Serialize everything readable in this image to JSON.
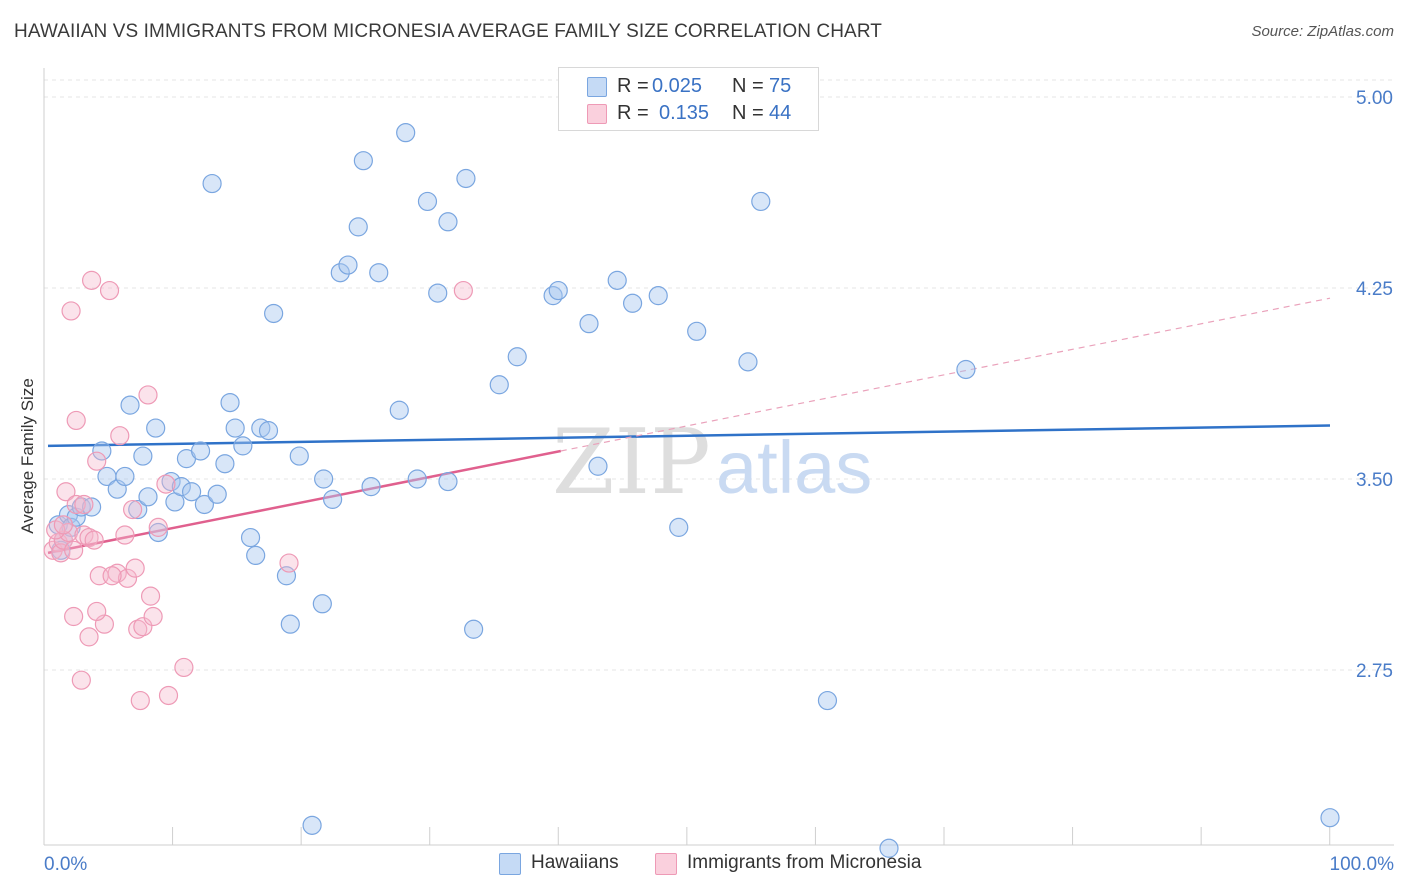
{
  "header": {
    "title": "HAWAIIAN VS IMMIGRANTS FROM MICRONESIA AVERAGE FAMILY SIZE CORRELATION CHART",
    "source": "Source: ZipAtlas.com"
  },
  "legend": {
    "rows": [
      {
        "r_label": "R =",
        "r_value": "0.025",
        "n_label": "N =",
        "n_value": "75",
        "color": "#a9c7ef"
      },
      {
        "r_label": "R =",
        "r_value": "0.135",
        "n_label": "N =",
        "n_value": "44",
        "color": "#f5b8cc"
      }
    ]
  },
  "bottom_legend": [
    {
      "label": "Hawaiians",
      "color": "#a9c7ef"
    },
    {
      "label": "Immigrants from Micronesia",
      "color": "#f5b8cc"
    }
  ],
  "watermark": {
    "zip": "ZIP",
    "atlas": "atlas"
  },
  "chart_data": {
    "type": "scatter",
    "title": "HAWAIIAN VS IMMIGRANTS FROM MICRONESIA AVERAGE FAMILY SIZE CORRELATION CHART",
    "xlabel": "",
    "ylabel": "Average Family Size",
    "xlim": [
      0,
      100
    ],
    "ylim": [
      2.05,
      5.12
    ],
    "x_tick_labels": {
      "left": "0.0%",
      "right": "100.0%"
    },
    "y_ticks": [
      2.75,
      3.5,
      4.25,
      5.0
    ],
    "y_tick_labels": [
      "2.75",
      "3.50",
      "4.25",
      "5.00"
    ],
    "grid": "horizontal dashed",
    "series": [
      {
        "name": "Hawaiians",
        "color": "#7aa6e0",
        "line_color": "#2f72c8",
        "trend": {
          "x": [
            0,
            100
          ],
          "y": [
            3.63,
            3.71
          ],
          "dashed_extension": false
        },
        "points": [
          {
            "x": 0.8,
            "y": 3.32
          },
          {
            "x": 1.2,
            "y": 3.26
          },
          {
            "x": 1.6,
            "y": 3.36
          },
          {
            "x": 1.8,
            "y": 3.31
          },
          {
            "x": 2.2,
            "y": 3.35
          },
          {
            "x": 2.6,
            "y": 3.39
          },
          {
            "x": 3.4,
            "y": 3.39
          },
          {
            "x": 4.2,
            "y": 3.61
          },
          {
            "x": 4.6,
            "y": 3.51
          },
          {
            "x": 5.4,
            "y": 3.46
          },
          {
            "x": 6.0,
            "y": 3.51
          },
          {
            "x": 6.4,
            "y": 3.79
          },
          {
            "x": 7.0,
            "y": 3.38
          },
          {
            "x": 7.4,
            "y": 3.59
          },
          {
            "x": 7.8,
            "y": 3.43
          },
          {
            "x": 8.4,
            "y": 3.7
          },
          {
            "x": 8.6,
            "y": 3.29
          },
          {
            "x": 9.6,
            "y": 3.49
          },
          {
            "x": 9.9,
            "y": 3.41
          },
          {
            "x": 10.4,
            "y": 3.47
          },
          {
            "x": 10.8,
            "y": 3.58
          },
          {
            "x": 11.2,
            "y": 3.45
          },
          {
            "x": 11.9,
            "y": 3.61
          },
          {
            "x": 12.2,
            "y": 3.4
          },
          {
            "x": 12.8,
            "y": 4.66
          },
          {
            "x": 13.2,
            "y": 3.44
          },
          {
            "x": 13.8,
            "y": 3.56
          },
          {
            "x": 14.2,
            "y": 3.8
          },
          {
            "x": 14.6,
            "y": 3.7
          },
          {
            "x": 15.2,
            "y": 3.63
          },
          {
            "x": 15.8,
            "y": 3.27
          },
          {
            "x": 16.2,
            "y": 3.2
          },
          {
            "x": 16.6,
            "y": 3.7
          },
          {
            "x": 17.2,
            "y": 3.69
          },
          {
            "x": 17.6,
            "y": 4.15
          },
          {
            "x": 18.6,
            "y": 3.12
          },
          {
            "x": 18.9,
            "y": 2.93
          },
          {
            "x": 19.6,
            "y": 3.59
          },
          {
            "x": 20.6,
            "y": 2.14
          },
          {
            "x": 21.5,
            "y": 3.5
          },
          {
            "x": 21.4,
            "y": 3.01
          },
          {
            "x": 22.2,
            "y": 3.42
          },
          {
            "x": 22.8,
            "y": 4.31
          },
          {
            "x": 23.4,
            "y": 4.34
          },
          {
            "x": 24.2,
            "y": 4.49
          },
          {
            "x": 24.6,
            "y": 4.75
          },
          {
            "x": 25.2,
            "y": 3.47
          },
          {
            "x": 25.8,
            "y": 4.31
          },
          {
            "x": 27.4,
            "y": 3.77
          },
          {
            "x": 27.9,
            "y": 4.86
          },
          {
            "x": 28.8,
            "y": 3.5
          },
          {
            "x": 29.6,
            "y": 4.59
          },
          {
            "x": 30.4,
            "y": 4.23
          },
          {
            "x": 31.2,
            "y": 4.51
          },
          {
            "x": 31.2,
            "y": 3.49
          },
          {
            "x": 32.6,
            "y": 4.68
          },
          {
            "x": 33.2,
            "y": 2.91
          },
          {
            "x": 35.2,
            "y": 3.87
          },
          {
            "x": 36.6,
            "y": 3.98
          },
          {
            "x": 39.4,
            "y": 4.22
          },
          {
            "x": 39.8,
            "y": 4.24
          },
          {
            "x": 42.2,
            "y": 4.11
          },
          {
            "x": 42.9,
            "y": 3.55
          },
          {
            "x": 44.4,
            "y": 4.28
          },
          {
            "x": 45.6,
            "y": 4.19
          },
          {
            "x": 47.6,
            "y": 4.22
          },
          {
            "x": 49.2,
            "y": 3.31
          },
          {
            "x": 50.6,
            "y": 4.08
          },
          {
            "x": 54.6,
            "y": 3.96
          },
          {
            "x": 55.6,
            "y": 4.59
          },
          {
            "x": 60.8,
            "y": 2.63
          },
          {
            "x": 65.6,
            "y": 2.05
          },
          {
            "x": 71.6,
            "y": 3.93
          },
          {
            "x": 100.0,
            "y": 2.17
          },
          {
            "x": 1.0,
            "y": 3.22
          }
        ]
      },
      {
        "name": "Immigrants from Micronesia",
        "color": "#ee9ab6",
        "line_color": "#e0608e",
        "trend": {
          "x": [
            0,
            40
          ],
          "y": [
            3.21,
            3.61
          ],
          "extension": {
            "x": [
              40,
              100
            ],
            "y": [
              3.61,
              4.21
            ]
          }
        },
        "points": [
          {
            "x": 0.4,
            "y": 3.22
          },
          {
            "x": 0.8,
            "y": 3.25
          },
          {
            "x": 1.0,
            "y": 3.21
          },
          {
            "x": 1.2,
            "y": 3.26
          },
          {
            "x": 1.4,
            "y": 3.45
          },
          {
            "x": 1.6,
            "y": 3.29
          },
          {
            "x": 2.0,
            "y": 3.22
          },
          {
            "x": 2.2,
            "y": 3.4
          },
          {
            "x": 1.8,
            "y": 4.16
          },
          {
            "x": 2.0,
            "y": 2.96
          },
          {
            "x": 2.2,
            "y": 3.73
          },
          {
            "x": 2.8,
            "y": 3.4
          },
          {
            "x": 2.8,
            "y": 3.28
          },
          {
            "x": 2.6,
            "y": 2.71
          },
          {
            "x": 3.2,
            "y": 3.27
          },
          {
            "x": 3.6,
            "y": 3.26
          },
          {
            "x": 3.2,
            "y": 2.88
          },
          {
            "x": 3.4,
            "y": 4.28
          },
          {
            "x": 3.8,
            "y": 3.57
          },
          {
            "x": 4.0,
            "y": 3.12
          },
          {
            "x": 4.4,
            "y": 2.93
          },
          {
            "x": 3.8,
            "y": 2.98
          },
          {
            "x": 4.8,
            "y": 4.24
          },
          {
            "x": 5.4,
            "y": 3.13
          },
          {
            "x": 5.6,
            "y": 3.67
          },
          {
            "x": 6.0,
            "y": 3.28
          },
          {
            "x": 6.2,
            "y": 3.11
          },
          {
            "x": 6.8,
            "y": 3.15
          },
          {
            "x": 6.6,
            "y": 3.38
          },
          {
            "x": 7.0,
            "y": 2.91
          },
          {
            "x": 7.2,
            "y": 2.63
          },
          {
            "x": 7.4,
            "y": 2.92
          },
          {
            "x": 7.8,
            "y": 3.83
          },
          {
            "x": 8.0,
            "y": 3.04
          },
          {
            "x": 8.2,
            "y": 2.96
          },
          {
            "x": 8.6,
            "y": 3.31
          },
          {
            "x": 9.2,
            "y": 3.48
          },
          {
            "x": 9.4,
            "y": 2.65
          },
          {
            "x": 10.6,
            "y": 2.76
          },
          {
            "x": 18.8,
            "y": 3.17
          },
          {
            "x": 32.4,
            "y": 4.24
          },
          {
            "x": 0.6,
            "y": 3.3
          },
          {
            "x": 1.2,
            "y": 3.32
          },
          {
            "x": 5.0,
            "y": 3.12
          }
        ]
      }
    ]
  }
}
